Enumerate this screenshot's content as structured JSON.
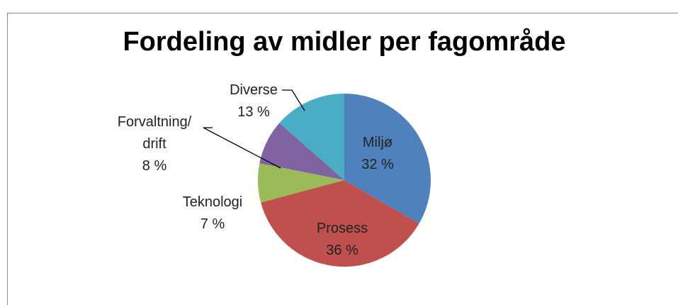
{
  "chart_data": {
    "type": "pie",
    "title": "Fordeling av midler per fagområde",
    "categories": [
      "Miljø",
      "Prosess",
      "Teknologi",
      "Forvaltning/\ndrift",
      "Diverse"
    ],
    "values": [
      32,
      36,
      7,
      8,
      13
    ],
    "value_labels": [
      "32 %",
      "36 %",
      "7 %",
      "8 %",
      "13 %"
    ],
    "colors": [
      "#4f81bd",
      "#c0504d",
      "#9bbb59",
      "#8064a2",
      "#4bacc6"
    ]
  }
}
